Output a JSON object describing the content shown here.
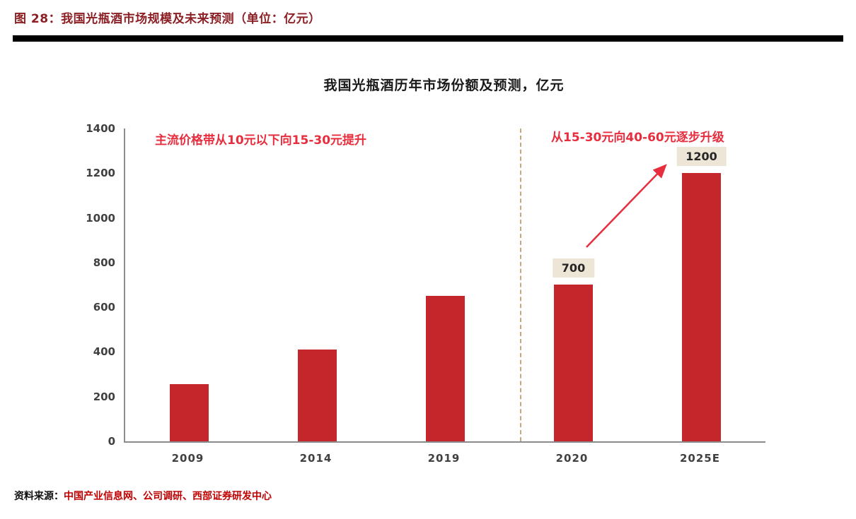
{
  "header": {
    "figure_title": "图 28：我国光瓶酒市场规模及未来预测（单位：亿元）"
  },
  "chart_data": {
    "type": "bar",
    "title": "我国光瓶酒历年市场份额及预测，亿元",
    "categories": [
      "2009",
      "2014",
      "2019",
      "2020",
      "2025E"
    ],
    "values": [
      255,
      410,
      650,
      700,
      1200
    ],
    "bar_labels": [
      "",
      "",
      "",
      "700",
      "1200"
    ],
    "xlabel": "",
    "ylabel": "",
    "ylim": [
      0,
      1400
    ],
    "yticks": [
      0,
      200,
      400,
      600,
      800,
      1000,
      1200,
      1400
    ],
    "grid": false,
    "legend_position": "none",
    "bar_color": "#c5262c",
    "divider_between": [
      "2019",
      "2020"
    ],
    "annotations": [
      {
        "text": "主流价格带从10元以下向15-30元提升",
        "color": "#e62e3e",
        "position": "top-left"
      },
      {
        "text": "从15-30元向40-60元逐步升级",
        "color": "#e62e3e",
        "position": "top-right"
      }
    ],
    "arrow": {
      "from_bar": "2020",
      "to_bar": "2025E",
      "color": "#e62e3e"
    }
  },
  "footer": {
    "source_label": "资料来源：",
    "source_text": "中国产业信息网、公司调研、西部证券研发中心"
  },
  "colors": {
    "bar": "#c5262c",
    "annotation_red": "#e62e3e",
    "caption_maroon": "#8c1f24",
    "divider_black": "#000000",
    "source_red": "#c00000",
    "label_bg": "#ede5d6",
    "dashed_line": "#c8a87b",
    "axis_gray": "#8c8c8c"
  }
}
